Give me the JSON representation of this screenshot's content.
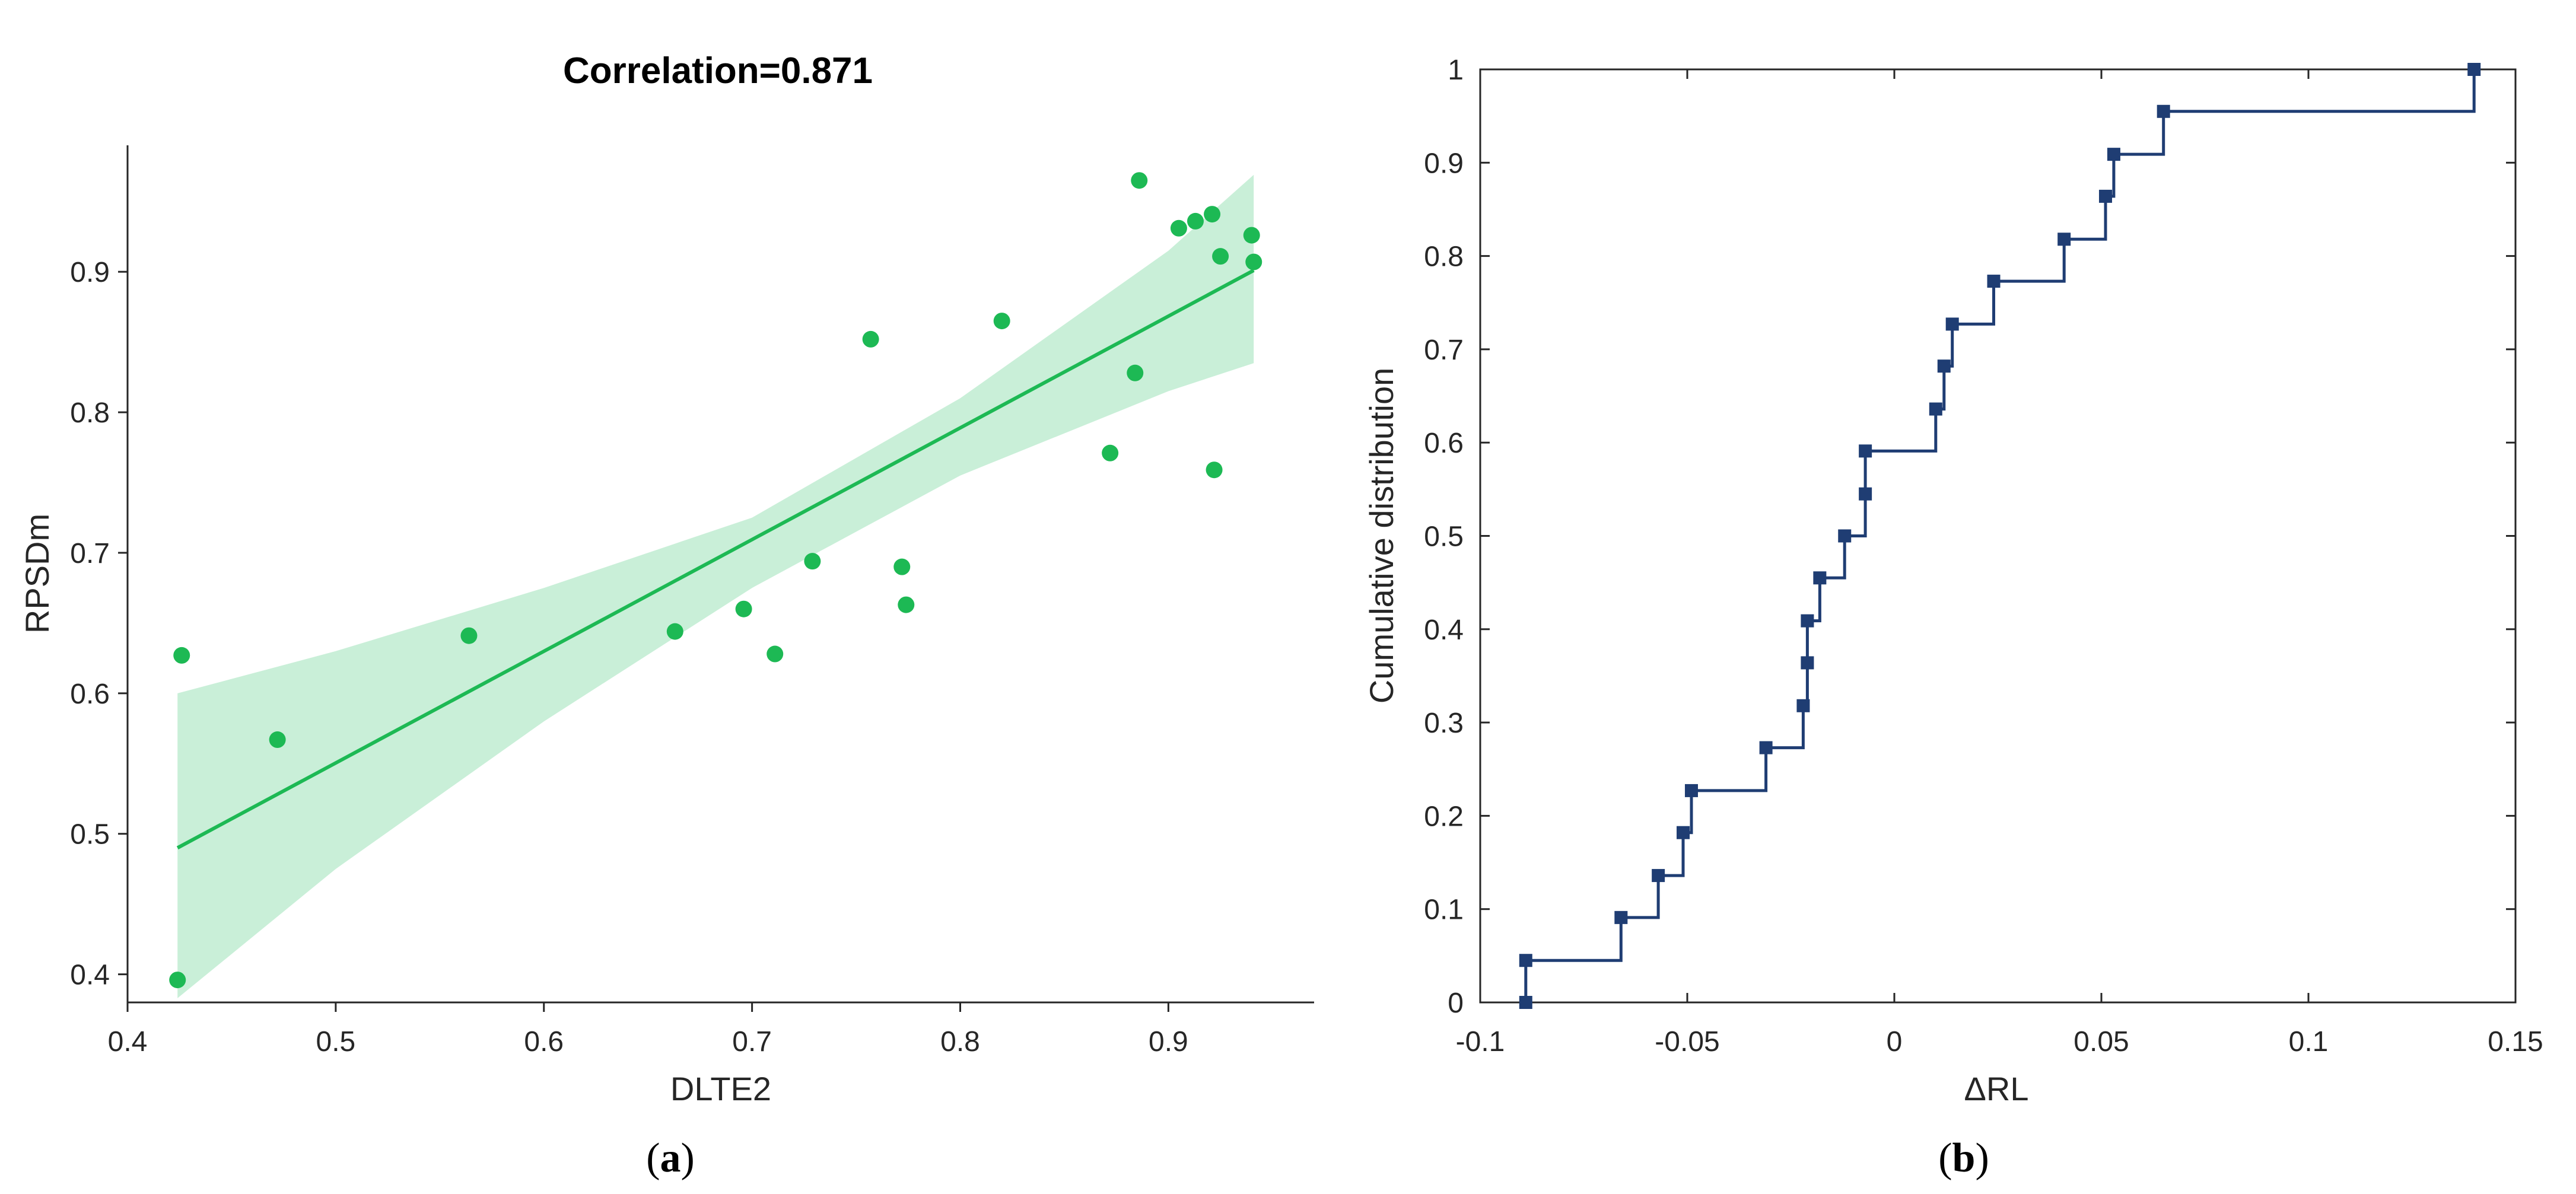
{
  "colors": {
    "scatter": "#1db954",
    "band": "#c9efd8",
    "fit_line": "#1db954",
    "ecdf": "#1f3d73",
    "axis": "#262626"
  },
  "chart_data": [
    {
      "panel_label": "a",
      "type": "scatter",
      "title": "Correlation=0.871",
      "xlabel": "DLTE2",
      "ylabel": "RPSDm",
      "xlim": [
        0.4,
        0.97
      ],
      "ylim": [
        0.38,
        0.99
      ],
      "xticks": [
        0.4,
        0.5,
        0.6,
        0.7,
        0.8,
        0.9
      ],
      "yticks": [
        0.4,
        0.5,
        0.6,
        0.7,
        0.8,
        0.9
      ],
      "xtick_labels": [
        "0.4",
        "0.5",
        "0.6",
        "0.7",
        "0.8",
        "0.9"
      ],
      "ytick_labels": [
        "0.4",
        "0.5",
        "0.6",
        "0.7",
        "0.8",
        "0.9"
      ],
      "points": [
        [
          0.424,
          0.396
        ],
        [
          0.426,
          0.627
        ],
        [
          0.472,
          0.567
        ],
        [
          0.564,
          0.641
        ],
        [
          0.663,
          0.644
        ],
        [
          0.696,
          0.66
        ],
        [
          0.711,
          0.628
        ],
        [
          0.729,
          0.694
        ],
        [
          0.757,
          0.852
        ],
        [
          0.772,
          0.69
        ],
        [
          0.774,
          0.663
        ],
        [
          0.82,
          0.865
        ],
        [
          0.872,
          0.771
        ],
        [
          0.884,
          0.828
        ],
        [
          0.886,
          0.965
        ],
        [
          0.905,
          0.931
        ],
        [
          0.913,
          0.936
        ],
        [
          0.921,
          0.941
        ],
        [
          0.922,
          0.759
        ],
        [
          0.925,
          0.911
        ],
        [
          0.94,
          0.926
        ],
        [
          0.941,
          0.907
        ]
      ],
      "fit_line": {
        "x": [
          0.424,
          0.941
        ],
        "y": [
          0.49,
          0.901
        ]
      },
      "confidence_band": {
        "x": [
          0.424,
          0.5,
          0.6,
          0.7,
          0.8,
          0.9,
          0.941
        ],
        "lower": [
          0.383,
          0.475,
          0.58,
          0.675,
          0.755,
          0.815,
          0.835
        ],
        "upper": [
          0.6,
          0.63,
          0.675,
          0.725,
          0.81,
          0.915,
          0.969
        ]
      }
    },
    {
      "panel_label": "b",
      "type": "line",
      "subtype": "empirical-cdf-step",
      "xlabel": "ΔRL",
      "ylabel": "Cumulative distribution",
      "xlim": [
        -0.1,
        0.15
      ],
      "ylim": [
        0,
        1
      ],
      "xticks": [
        -0.1,
        -0.05,
        0,
        0.05,
        0.1,
        0.15
      ],
      "yticks": [
        0,
        0.1,
        0.2,
        0.3,
        0.4,
        0.5,
        0.6,
        0.7,
        0.8,
        0.9,
        1
      ],
      "xtick_labels": [
        "-0.1",
        "-0.05",
        "0",
        "0.05",
        "0.1",
        "0.15"
      ],
      "ytick_labels": [
        "0",
        "0.1",
        "0.2",
        "0.3",
        "0.4",
        "0.5",
        "0.6",
        "0.7",
        "0.8",
        "0.9",
        "1"
      ],
      "steps": [
        [
          -0.089,
          0
        ],
        [
          -0.089,
          0.045
        ],
        [
          -0.066,
          0.091
        ],
        [
          -0.057,
          0.136
        ],
        [
          -0.051,
          0.182
        ],
        [
          -0.049,
          0.227
        ],
        [
          -0.031,
          0.273
        ],
        [
          -0.022,
          0.318
        ],
        [
          -0.021,
          0.364
        ],
        [
          -0.021,
          0.409
        ],
        [
          -0.018,
          0.455
        ],
        [
          -0.012,
          0.5
        ],
        [
          -0.007,
          0.545
        ],
        [
          -0.007,
          0.591
        ],
        [
          0.01,
          0.636
        ],
        [
          0.012,
          0.682
        ],
        [
          0.014,
          0.727
        ],
        [
          0.024,
          0.773
        ],
        [
          0.041,
          0.818
        ],
        [
          0.051,
          0.864
        ],
        [
          0.053,
          0.909
        ],
        [
          0.065,
          0.955
        ],
        [
          0.14,
          1
        ]
      ]
    }
  ]
}
